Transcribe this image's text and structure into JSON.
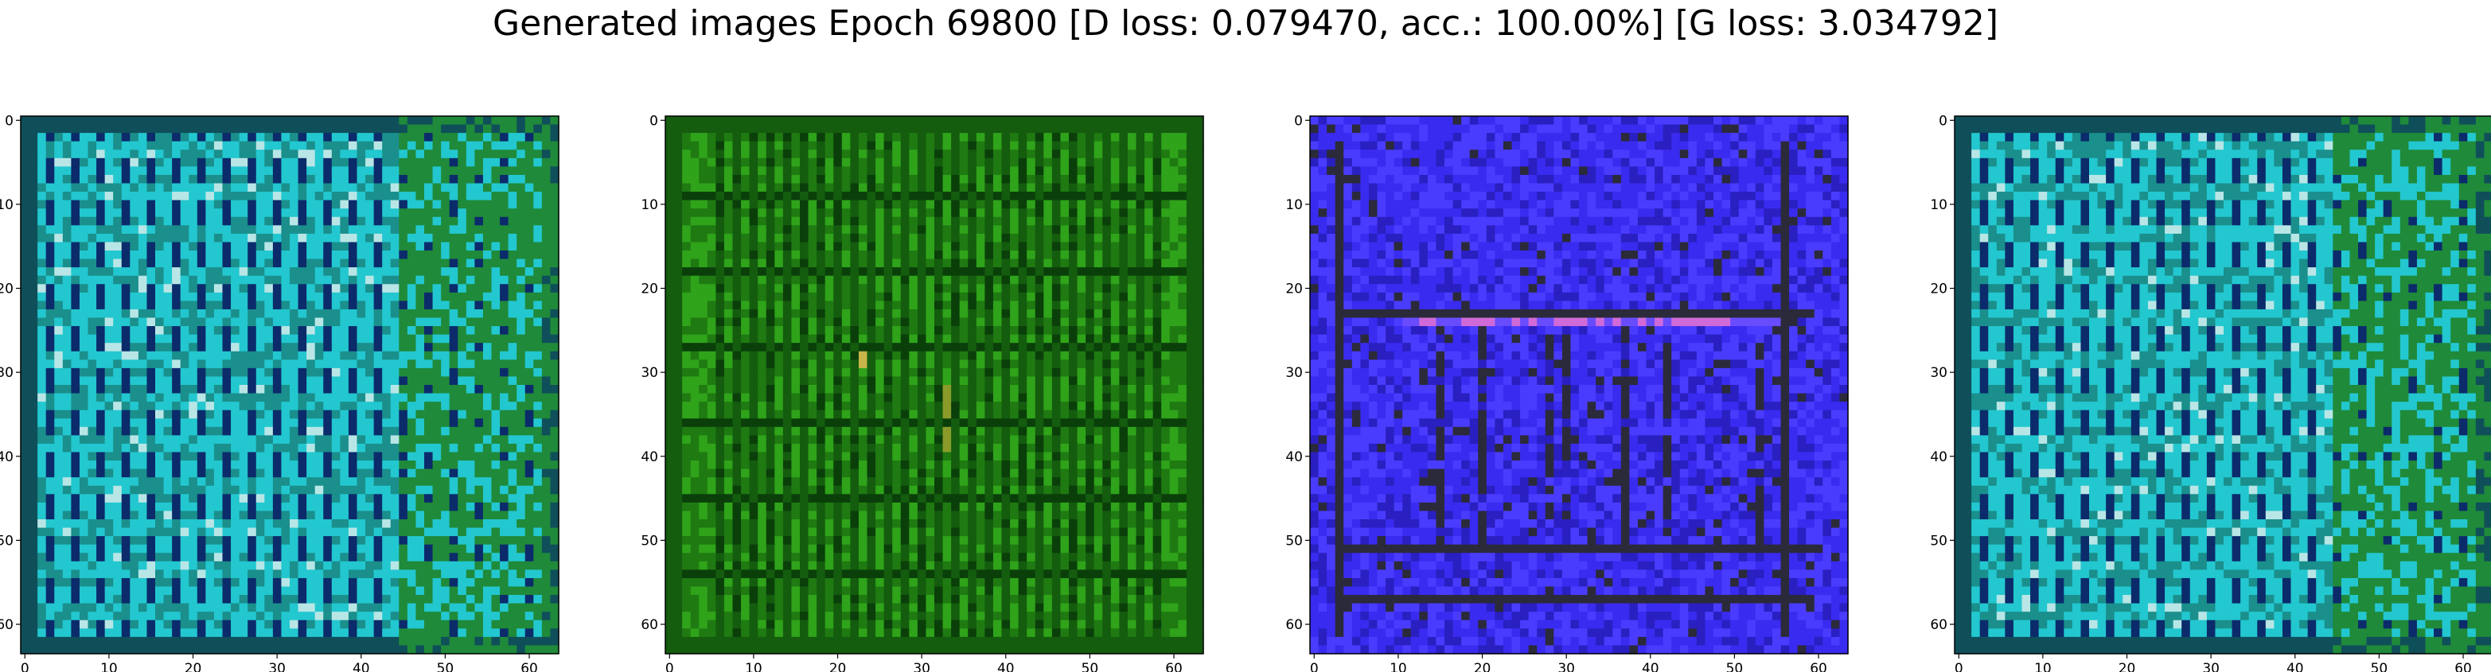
{
  "figure": {
    "title": "Generated images Epoch 69800 [D loss: 0.079470, acc.: 100.00%] [G loss: 3.034792]"
  },
  "chart_data": [
    {
      "type": "heatmap",
      "title": "",
      "xlim": [
        0,
        63
      ],
      "ylim": [
        63,
        0
      ],
      "xticks": [
        0,
        10,
        20,
        30,
        40,
        50,
        60
      ],
      "yticks": [
        0,
        10,
        20,
        30,
        40,
        50,
        60
      ],
      "xtick_labels": [
        "0",
        "10",
        "20",
        "30",
        "40",
        "50",
        "60"
      ],
      "ytick_labels": [
        "0",
        "10",
        "20",
        "30",
        "40",
        "50",
        "60"
      ],
      "grid": false,
      "palette": [
        "#0f4f5a",
        "#1a8f8c",
        "#23c7cf",
        "#1f8a3a",
        "#0b2b6b",
        "#b8e6e6"
      ],
      "pattern": "teal-grid"
    },
    {
      "type": "heatmap",
      "title": "",
      "xlim": [
        0,
        63
      ],
      "ylim": [
        63,
        0
      ],
      "xticks": [
        0,
        10,
        20,
        30,
        40,
        50,
        60
      ],
      "yticks": [
        0,
        10,
        20,
        30,
        40,
        50,
        60
      ],
      "xtick_labels": [
        "0",
        "10",
        "20",
        "30",
        "40",
        "50",
        "60"
      ],
      "ytick_labels": [
        "0",
        "10",
        "20",
        "30",
        "40",
        "50",
        "60"
      ],
      "grid": false,
      "palette": [
        "#0a3f0a",
        "#1f7a12",
        "#2fa31a",
        "#145c0e",
        "#8b9b2a",
        "#c9b44a"
      ],
      "pattern": "green-stripes"
    },
    {
      "type": "heatmap",
      "title": "",
      "xlim": [
        0,
        63
      ],
      "ylim": [
        63,
        0
      ],
      "xticks": [
        0,
        10,
        20,
        30,
        40,
        50,
        60
      ],
      "yticks": [
        0,
        10,
        20,
        30,
        40,
        50,
        60
      ],
      "xtick_labels": [
        "0",
        "10",
        "20",
        "30",
        "40",
        "50",
        "60"
      ],
      "ytick_labels": [
        "0",
        "10",
        "20",
        "30",
        "40",
        "50",
        "60"
      ],
      "grid": false,
      "palette": [
        "#3a2bf0",
        "#2a1fc0",
        "#4a3cff",
        "#2b2a3a",
        "#6a4cff",
        "#d06ad8"
      ],
      "pattern": "blue-frame"
    },
    {
      "type": "heatmap",
      "title": "",
      "xlim": [
        0,
        63
      ],
      "ylim": [
        63,
        0
      ],
      "xticks": [
        0,
        10,
        20,
        30,
        40,
        50,
        60
      ],
      "yticks": [
        0,
        10,
        20,
        30,
        40,
        50,
        60
      ],
      "xtick_labels": [
        "0",
        "10",
        "20",
        "30",
        "40",
        "50",
        "60"
      ],
      "ytick_labels": [
        "0",
        "10",
        "20",
        "30",
        "40",
        "50",
        "60"
      ],
      "grid": false,
      "palette": [
        "#0f4f5a",
        "#1a8f8c",
        "#23c7cf",
        "#1f8a3a",
        "#0b2b6b",
        "#b8e6e6"
      ],
      "pattern": "teal-grid"
    }
  ]
}
